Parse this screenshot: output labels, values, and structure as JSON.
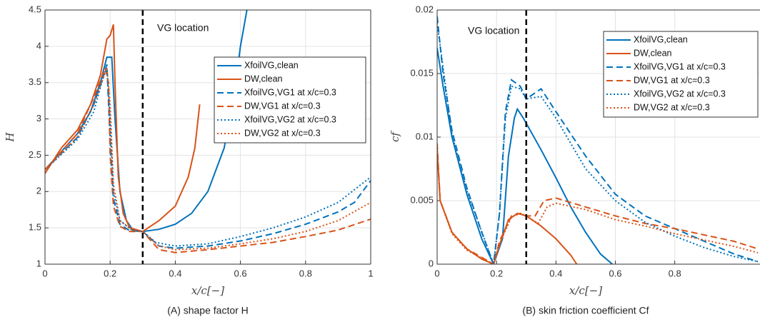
{
  "chart_data": [
    {
      "type": "line",
      "caption": "(A)  shape factor H",
      "x_label": "x/c[−]",
      "y_label": "H",
      "xlim": [
        0,
        1
      ],
      "xticks": [
        0,
        0.2,
        0.4,
        0.6,
        0.8,
        1
      ],
      "ylim": [
        1,
        4.5
      ],
      "yticks": [
        1,
        1.5,
        2,
        2.5,
        3,
        3.5,
        4,
        4.5
      ],
      "grid": true,
      "vline": {
        "x": 0.3,
        "label": "VG location",
        "color": "#000000"
      },
      "legend": "upper right",
      "series": [
        {
          "name": "XfoilVG,clean",
          "color": "#0072BD",
          "dash": "solid",
          "x": [
            0,
            0.05,
            0.1,
            0.14,
            0.17,
            0.19,
            0.205,
            0.215,
            0.23,
            0.25,
            0.27,
            0.3,
            0.35,
            0.4,
            0.45,
            0.5,
            0.55,
            0.58,
            0.6,
            0.62
          ],
          "values": [
            2.3,
            2.55,
            2.8,
            3.1,
            3.5,
            3.85,
            3.85,
            3.0,
            2.0,
            1.6,
            1.47,
            1.45,
            1.48,
            1.55,
            1.7,
            2.0,
            2.6,
            3.3,
            4.0,
            4.5
          ]
        },
        {
          "name": "DW,clean",
          "color": "#D95319",
          "dash": "solid",
          "x": [
            0,
            0.05,
            0.1,
            0.14,
            0.17,
            0.19,
            0.2,
            0.21,
            0.215,
            0.225,
            0.24,
            0.26,
            0.3,
            0.35,
            0.4,
            0.44,
            0.46,
            0.475
          ],
          "values": [
            2.25,
            2.6,
            2.85,
            3.2,
            3.6,
            4.1,
            4.15,
            4.3,
            3.5,
            2.2,
            1.7,
            1.5,
            1.45,
            1.6,
            1.8,
            2.2,
            2.6,
            3.2
          ]
        },
        {
          "name": "XfoilVG,VG1 at x/c=0.3",
          "color": "#0072BD",
          "dash": "dashed",
          "x": [
            0,
            0.1,
            0.15,
            0.18,
            0.19,
            0.2,
            0.21,
            0.23,
            0.26,
            0.3,
            0.35,
            0.4,
            0.5,
            0.6,
            0.7,
            0.8,
            0.9,
            0.95,
            1
          ],
          "values": [
            2.3,
            2.75,
            3.2,
            3.6,
            3.75,
            2.7,
            1.9,
            1.55,
            1.46,
            1.45,
            1.25,
            1.22,
            1.25,
            1.32,
            1.42,
            1.55,
            1.72,
            1.85,
            2.15
          ]
        },
        {
          "name": "DW,VG1 at x/c=0.3",
          "color": "#D95319",
          "dash": "dashed",
          "x": [
            0,
            0.1,
            0.15,
            0.185,
            0.195,
            0.2,
            0.21,
            0.23,
            0.26,
            0.3,
            0.35,
            0.4,
            0.5,
            0.6,
            0.7,
            0.8,
            0.9,
            1
          ],
          "values": [
            2.3,
            2.8,
            3.3,
            3.7,
            3.5,
            2.5,
            1.8,
            1.52,
            1.45,
            1.45,
            1.2,
            1.16,
            1.2,
            1.25,
            1.3,
            1.38,
            1.47,
            1.62
          ]
        },
        {
          "name": "XfoilVG,VG2 at x/c=0.3",
          "color": "#0072BD",
          "dash": "dotted",
          "x": [
            0,
            0.1,
            0.15,
            0.18,
            0.19,
            0.2,
            0.21,
            0.23,
            0.27,
            0.3,
            0.34,
            0.4,
            0.5,
            0.6,
            0.7,
            0.8,
            0.9,
            1
          ],
          "values": [
            2.3,
            2.72,
            3.1,
            3.6,
            3.7,
            3.0,
            2.0,
            1.6,
            1.46,
            1.45,
            1.3,
            1.25,
            1.28,
            1.38,
            1.5,
            1.65,
            1.85,
            2.2
          ]
        },
        {
          "name": "DW,VG2 at x/c=0.3",
          "color": "#D95319",
          "dash": "dotted",
          "x": [
            0,
            0.1,
            0.15,
            0.19,
            0.2,
            0.21,
            0.23,
            0.27,
            0.3,
            0.35,
            0.4,
            0.5,
            0.6,
            0.7,
            0.8,
            0.9,
            1
          ],
          "values": [
            2.3,
            2.75,
            3.2,
            3.7,
            3.2,
            2.1,
            1.6,
            1.46,
            1.45,
            1.25,
            1.2,
            1.22,
            1.28,
            1.35,
            1.45,
            1.6,
            1.85
          ]
        }
      ]
    },
    {
      "type": "line",
      "caption": "(B)  skin friction coefficient Cf",
      "x_label": "x/c[−]",
      "y_label": "cf",
      "xlim": [
        0,
        1.087
      ],
      "xticks": [
        0,
        0.2,
        0.4,
        0.6,
        0.8
      ],
      "ylim": [
        0,
        0.02
      ],
      "yticks": [
        0,
        0.005,
        0.01,
        0.015,
        0.02
      ],
      "grid": true,
      "vline": {
        "x": 0.3,
        "label": "VG location",
        "color": "#000000"
      },
      "legend": "upper right",
      "series": [
        {
          "name": "XfoilVG,clean",
          "color": "#0072BD",
          "dash": "solid",
          "x": [
            0,
            0.02,
            0.05,
            0.1,
            0.15,
            0.19,
            0.22,
            0.24,
            0.26,
            0.27,
            0.29,
            0.35,
            0.4,
            0.45,
            0.5,
            0.55,
            0.59
          ],
          "values": [
            0.017,
            0.014,
            0.01,
            0.0055,
            0.002,
            0,
            0.002,
            0.0085,
            0.0115,
            0.0122,
            0.0115,
            0.009,
            0.0068,
            0.0045,
            0.0025,
            0.0008,
            0
          ]
        },
        {
          "name": "DW,clean",
          "color": "#D95319",
          "dash": "solid",
          "x": [
            0,
            0.01,
            0.05,
            0.1,
            0.15,
            0.19,
            0.21,
            0.24,
            0.27,
            0.3,
            0.35,
            0.4,
            0.45,
            0.47
          ],
          "values": [
            0.009,
            0.005,
            0.0025,
            0.0012,
            0.0004,
            0,
            0.0015,
            0.0035,
            0.004,
            0.0038,
            0.003,
            0.002,
            0.0007,
            0
          ]
        },
        {
          "name": "XfoilVG,VG1 at x/c=0.3",
          "color": "#0072BD",
          "dash": "dashed",
          "x": [
            0,
            0.02,
            0.05,
            0.1,
            0.15,
            0.19,
            0.21,
            0.23,
            0.25,
            0.28,
            0.3,
            0.35,
            0.4,
            0.5,
            0.6,
            0.7,
            0.8,
            0.9,
            1,
            1.08
          ],
          "values": [
            0.0195,
            0.015,
            0.0105,
            0.006,
            0.0025,
            0,
            0.004,
            0.012,
            0.0145,
            0.014,
            0.013,
            0.0138,
            0.012,
            0.0085,
            0.0055,
            0.0038,
            0.0028,
            0.0018,
            0.0008,
            0.0002
          ]
        },
        {
          "name": "DW,VG1 at x/c=0.3",
          "color": "#D95319",
          "dash": "dashed",
          "x": [
            0,
            0.01,
            0.05,
            0.1,
            0.19,
            0.21,
            0.25,
            0.28,
            0.3,
            0.33,
            0.36,
            0.4,
            0.5,
            0.6,
            0.7,
            0.8,
            0.9,
            1,
            1.08
          ],
          "values": [
            0.0095,
            0.005,
            0.0025,
            0.0012,
            0,
            0.0018,
            0.0038,
            0.004,
            0.0038,
            0.0038,
            0.005,
            0.0052,
            0.0045,
            0.0038,
            0.0032,
            0.0028,
            0.0023,
            0.0018,
            0.0012
          ]
        },
        {
          "name": "XfoilVG,VG2 at x/c=0.3",
          "color": "#0072BD",
          "dash": "dotted",
          "x": [
            0,
            0.05,
            0.1,
            0.19,
            0.21,
            0.23,
            0.25,
            0.28,
            0.3,
            0.35,
            0.4,
            0.5,
            0.6,
            0.7,
            0.8,
            0.9,
            1,
            1.08
          ],
          "values": [
            0.019,
            0.0102,
            0.0058,
            0,
            0.004,
            0.0115,
            0.014,
            0.0138,
            0.013,
            0.0132,
            0.0115,
            0.0075,
            0.005,
            0.0033,
            0.0022,
            0.0013,
            0.0006,
            0.0002
          ]
        },
        {
          "name": "DW,VG2 at x/c=0.3",
          "color": "#D95319",
          "dash": "dotted",
          "x": [
            0,
            0.01,
            0.05,
            0.1,
            0.19,
            0.21,
            0.25,
            0.28,
            0.3,
            0.34,
            0.37,
            0.4,
            0.5,
            0.6,
            0.7,
            0.8,
            0.9,
            1,
            1.08
          ],
          "values": [
            0.0092,
            0.005,
            0.0024,
            0.0011,
            0,
            0.0016,
            0.0037,
            0.004,
            0.0038,
            0.0032,
            0.0045,
            0.0048,
            0.0043,
            0.0035,
            0.003,
            0.0024,
            0.0019,
            0.0014,
            0.0009
          ]
        }
      ]
    }
  ]
}
